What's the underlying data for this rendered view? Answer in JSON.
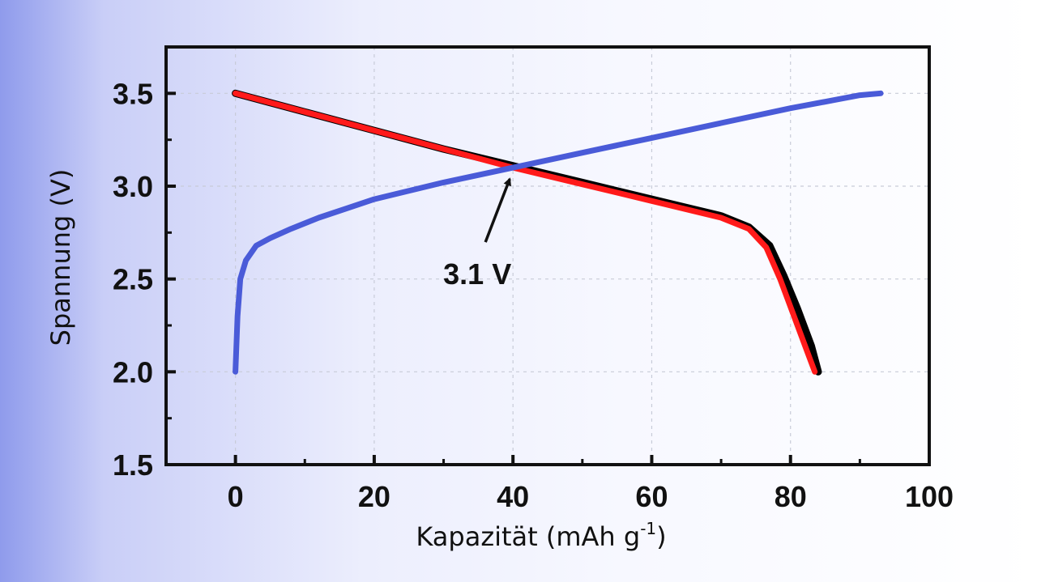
{
  "chart_data": {
    "type": "line",
    "title": "",
    "xlabel": "Kapazität (mAh g",
    "xlabel_sup": "-1",
    "xlabel_end": ")",
    "ylabel": "Spannung (V)",
    "xlim": [
      -10,
      100
    ],
    "ylim": [
      1.5,
      3.75
    ],
    "xticks": [
      0,
      20,
      40,
      60,
      80,
      100
    ],
    "yticks": [
      1.5,
      2.0,
      2.5,
      3.0,
      3.5
    ],
    "xtick_labels": [
      "0",
      "20",
      "40",
      "60",
      "80",
      "100"
    ],
    "ytick_labels": [
      "1.5",
      "2.0",
      "2.5",
      "3.0",
      "3.5"
    ],
    "grid": true,
    "legend": false,
    "series": [
      {
        "color": "#000000",
        "x": [
          0,
          10,
          20,
          30,
          40,
          50,
          60,
          70,
          74,
          77,
          79,
          81,
          83,
          84
        ],
        "y": [
          3.5,
          3.4,
          3.3,
          3.2,
          3.11,
          3.02,
          2.93,
          2.84,
          2.78,
          2.68,
          2.52,
          2.34,
          2.14,
          2.0
        ]
      },
      {
        "color": "#ff1a1a",
        "x": [
          0,
          10,
          20,
          30,
          40,
          50,
          60,
          70,
          74,
          76.5,
          78.5,
          80.5,
          82.5,
          83.5
        ],
        "y": [
          3.5,
          3.4,
          3.3,
          3.2,
          3.1,
          3.01,
          2.92,
          2.83,
          2.77,
          2.67,
          2.5,
          2.3,
          2.1,
          2.0
        ]
      },
      {
        "color": "#4a5bd8",
        "x": [
          0,
          0.3,
          0.7,
          1.5,
          3,
          5,
          8,
          12,
          20,
          30,
          40,
          50,
          60,
          70,
          80,
          90,
          93
        ],
        "y": [
          2.0,
          2.3,
          2.5,
          2.6,
          2.68,
          2.72,
          2.77,
          2.83,
          2.93,
          3.02,
          3.1,
          3.18,
          3.26,
          3.34,
          3.42,
          3.49,
          3.5
        ]
      }
    ],
    "annotations": [
      {
        "text": "3.1 V",
        "x": 40,
        "y": 3.1
      }
    ]
  }
}
